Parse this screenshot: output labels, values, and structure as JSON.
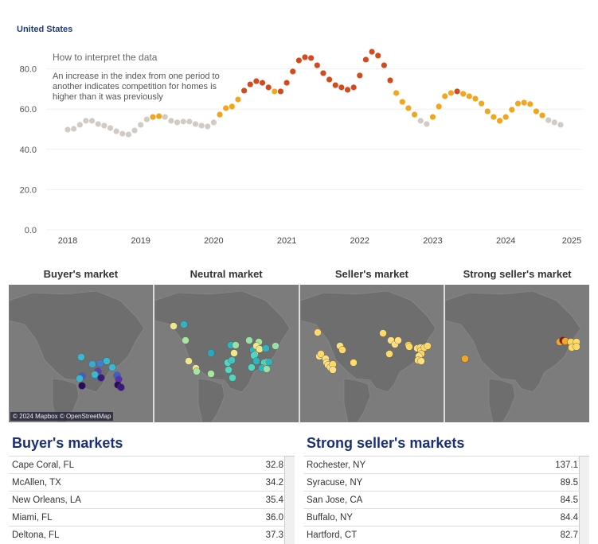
{
  "region_title": "United States",
  "note": {
    "title": "How to interpret the data",
    "lines": [
      "An increase in the index from one period to",
      "another indicates competition for homes is",
      "higher than it was previously"
    ]
  },
  "colors": {
    "neutral": "#d3cac4",
    "seller": "#f2a51e",
    "strong": "#d24a1e",
    "title": "#1f3a7a"
  },
  "chart_data": {
    "type": "scatter",
    "title": "United States",
    "xlabel": "",
    "ylabel": "",
    "ylim": [
      0,
      90
    ],
    "xlim": [
      2018,
      2025
    ],
    "y_ticks": [
      "0.0",
      "20.0",
      "40.0",
      "60.0",
      "80.0"
    ],
    "y_tick_values": [
      0,
      20,
      40,
      60,
      80
    ],
    "x_ticks": [
      "2018",
      "2019",
      "2020",
      "2021",
      "2022",
      "2023",
      "2024",
      "2025"
    ],
    "start": "2018-01",
    "frequency": "monthly",
    "values": [
      49.8,
      50.2,
      52.2,
      54.2,
      54.2,
      52.6,
      51.8,
      50.6,
      49.0,
      47.8,
      47.4,
      49.4,
      52.2,
      54.9,
      56.1,
      56.5,
      56.1,
      54.2,
      53.4,
      53.8,
      53.8,
      52.6,
      51.8,
      51.4,
      53.4,
      57.3,
      60.5,
      61.3,
      64.8,
      69.2,
      72.3,
      73.9,
      73.1,
      70.8,
      68.8,
      68.8,
      73.1,
      78.7,
      84.2,
      85.8,
      85.4,
      81.8,
      77.9,
      74.7,
      71.9,
      70.8,
      69.6,
      70.8,
      76.7,
      84.6,
      88.5,
      86.6,
      81.8,
      74.3,
      68.0,
      63.6,
      60.5,
      57.3,
      54.2,
      52.6,
      56.1,
      61.3,
      66.4,
      68.0,
      68.8,
      67.6,
      66.4,
      65.2,
      62.8,
      58.9,
      56.1,
      54.2,
      56.1,
      59.7,
      62.8,
      63.2,
      62.5,
      58.9,
      56.9,
      54.5,
      53.4,
      52.2
    ],
    "categories": [
      "n",
      "n",
      "n",
      "n",
      "n",
      "n",
      "n",
      "n",
      "n",
      "n",
      "n",
      "n",
      "n",
      "n",
      "s",
      "s",
      "n",
      "n",
      "n",
      "n",
      "n",
      "n",
      "n",
      "n",
      "n",
      "s",
      "s",
      "s",
      "s",
      "r",
      "r",
      "r",
      "r",
      "r",
      "s",
      "r",
      "r",
      "r",
      "r",
      "r",
      "r",
      "r",
      "r",
      "r",
      "r",
      "r",
      "r",
      "r",
      "r",
      "r",
      "r",
      "r",
      "r",
      "r",
      "s",
      "s",
      "s",
      "s",
      "n",
      "n",
      "s",
      "s",
      "s",
      "s",
      "r",
      "s",
      "s",
      "s",
      "s",
      "s",
      "s",
      "s",
      "s",
      "s",
      "s",
      "s",
      "s",
      "s",
      "s",
      "n",
      "n",
      "n"
    ]
  },
  "maps": [
    {
      "title": "Buyer's market",
      "attribution": "© 2024 Mapbox © OpenStreetMap"
    },
    {
      "title": "Neutral market"
    },
    {
      "title": "Seller's market"
    },
    {
      "title": "Strong seller's market"
    }
  ],
  "buyers": {
    "title": "Buyer's markets",
    "rows": [
      {
        "city": "Cape Coral, FL",
        "value": "32.8"
      },
      {
        "city": "McAllen, TX",
        "value": "34.2"
      },
      {
        "city": "New Orleans, LA",
        "value": "35.4"
      },
      {
        "city": "Miami, FL",
        "value": "36.0"
      },
      {
        "city": "Deltona, FL",
        "value": "37.3"
      }
    ]
  },
  "sellers": {
    "title": "Strong seller's markets",
    "rows": [
      {
        "city": "Rochester, NY",
        "value": "137.1"
      },
      {
        "city": "Syracuse, NY",
        "value": "89.5"
      },
      {
        "city": "San Jose, CA",
        "value": "84.5"
      },
      {
        "city": "Buffalo, NY",
        "value": "84.4"
      },
      {
        "city": "Hartford, CT",
        "value": "82.7"
      }
    ]
  }
}
